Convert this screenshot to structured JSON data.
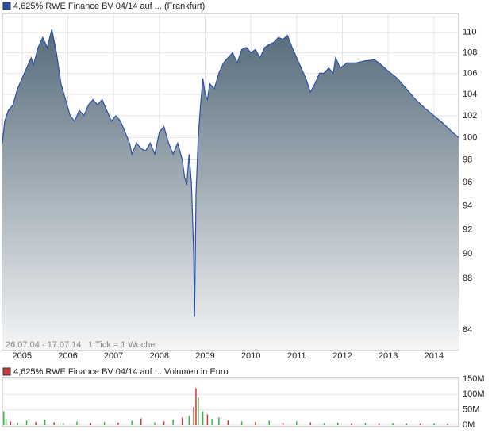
{
  "chart_data": [
    {
      "type": "area",
      "legend_text": "4,625% RWE Finance BV 04/14 auf ... (Frankfurt)",
      "date_range": "26.07.04 - 17.07.14",
      "tick_note": "1 Tick = 1 Woche",
      "log_scale": true,
      "grid": true,
      "color": "#2a4fa6",
      "fill_top": "#566b7b",
      "fill_bottom": "#f4f5f6",
      "xlim": [
        2004.57,
        2014.54
      ],
      "ylim": [
        82.5,
        111.9
      ],
      "xticks": [
        2005,
        2006,
        2007,
        2008,
        2009,
        2010,
        2011,
        2012,
        2013,
        2014
      ],
      "yticks": [
        84,
        88,
        90,
        92,
        94,
        96,
        98,
        100,
        102,
        104,
        106,
        108,
        110
      ],
      "x": [
        2004.57,
        2004.62,
        2004.7,
        2004.8,
        2004.9,
        2005.0,
        2005.1,
        2005.2,
        2005.25,
        2005.35,
        2005.45,
        2005.55,
        2005.65,
        2005.75,
        2005.85,
        2005.95,
        2006.05,
        2006.15,
        2006.25,
        2006.35,
        2006.45,
        2006.55,
        2006.65,
        2006.75,
        2006.85,
        2006.95,
        2007.05,
        2007.15,
        2007.25,
        2007.35,
        2007.4,
        2007.5,
        2007.6,
        2007.7,
        2007.8,
        2007.9,
        2008.0,
        2008.1,
        2008.2,
        2008.3,
        2008.4,
        2008.5,
        2008.55,
        2008.6,
        2008.65,
        2008.7,
        2008.75,
        2008.77,
        2008.8,
        2008.85,
        2008.9,
        2008.95,
        2009.0,
        2009.05,
        2009.1,
        2009.2,
        2009.3,
        2009.4,
        2009.5,
        2009.6,
        2009.7,
        2009.8,
        2009.9,
        2010.0,
        2010.1,
        2010.2,
        2010.3,
        2010.4,
        2010.5,
        2010.6,
        2010.7,
        2010.8,
        2010.9,
        2011.0,
        2011.1,
        2011.2,
        2011.3,
        2011.4,
        2011.5,
        2011.6,
        2011.7,
        2011.8,
        2011.85,
        2011.95,
        2012.1,
        2012.3,
        2012.5,
        2012.7,
        2012.8,
        2012.9,
        2013.0,
        2013.2,
        2013.4,
        2013.6,
        2013.8,
        2014.0,
        2014.2,
        2014.4,
        2014.54
      ],
      "values": [
        99.5,
        101.5,
        102.5,
        103,
        104.5,
        105.5,
        106.5,
        107.5,
        106.8,
        108.5,
        109.5,
        108.5,
        110.3,
        108,
        105,
        103.5,
        102,
        101.5,
        102.5,
        102,
        103,
        103.5,
        103,
        103.5,
        102.5,
        101.5,
        102,
        101.5,
        100.5,
        99.5,
        98.5,
        99.5,
        99,
        98.8,
        99.5,
        98.5,
        100.5,
        101,
        99.5,
        98.5,
        99.5,
        98,
        96.5,
        95.8,
        98.5,
        96,
        90,
        85,
        95,
        100,
        103,
        105.5,
        104,
        103.5,
        105,
        104.5,
        106,
        107,
        107.5,
        108,
        107,
        108.3,
        108.5,
        108,
        108.3,
        107.5,
        108.5,
        108.8,
        109,
        109.5,
        109.3,
        109.7,
        108.5,
        107.5,
        106.5,
        105.5,
        104.2,
        105,
        106,
        106,
        106.5,
        106,
        107.5,
        106.5,
        107,
        107,
        107.2,
        107.3,
        107,
        106.6,
        106.2,
        105.5,
        104.5,
        103.5,
        102.7,
        102,
        101.3,
        100.5,
        100
      ]
    },
    {
      "type": "volume",
      "legend_text": "4,625% RWE Finance BV 04/14 auf ... Volumen in Euro",
      "legend_color": "#c83c3c",
      "grid": true,
      "xlim": [
        2004.57,
        2014.54
      ],
      "ylim": [
        0,
        155000000
      ],
      "yticks": [
        {
          "value": 0,
          "label": "0M"
        },
        {
          "value": 50000000,
          "label": "50M"
        },
        {
          "value": 100000000,
          "label": "100M"
        },
        {
          "value": 150000000,
          "label": "150M"
        }
      ],
      "x": [
        2004.6,
        2004.65,
        2004.75,
        2004.9,
        2005.1,
        2005.3,
        2005.5,
        2005.7,
        2005.9,
        2006.2,
        2006.5,
        2006.8,
        2007.1,
        2007.4,
        2007.6,
        2007.9,
        2008.1,
        2008.3,
        2008.5,
        2008.65,
        2008.75,
        2008.8,
        2008.85,
        2008.95,
        2009.05,
        2009.15,
        2009.3,
        2009.5,
        2009.8,
        2010.1,
        2010.4,
        2010.7,
        2011.0,
        2011.3,
        2011.6,
        2011.9,
        2012.2,
        2012.5,
        2012.8,
        2013.1,
        2013.4,
        2013.7,
        2014.0,
        2014.3
      ],
      "values": [
        45000000,
        20000000,
        12000000,
        8000000,
        15000000,
        10000000,
        18000000,
        9000000,
        7000000,
        12000000,
        6000000,
        10000000,
        8000000,
        14000000,
        22000000,
        9000000,
        12000000,
        18000000,
        25000000,
        30000000,
        60000000,
        120000000,
        90000000,
        45000000,
        35000000,
        20000000,
        25000000,
        15000000,
        12000000,
        10000000,
        14000000,
        8000000,
        12000000,
        9000000,
        6000000,
        8000000,
        5000000,
        7000000,
        4000000,
        6000000,
        5000000,
        4000000,
        5000000,
        3000000
      ],
      "colors": [
        "#3cb44b",
        "#3cb44b",
        "#c83c3c",
        "#3cb44b",
        "#3cb44b",
        "#c83c3c",
        "#3cb44b",
        "#c83c3c",
        "#3cb44b",
        "#3cb44b",
        "#c83c3c",
        "#3cb44b",
        "#c83c3c",
        "#3cb44b",
        "#c83c3c",
        "#3cb44b",
        "#c83c3c",
        "#3cb44b",
        "#c83c3c",
        "#3cb44b",
        "#c83c3c",
        "#c83c3c",
        "#3cb44b",
        "#3cb44b",
        "#c83c3c",
        "#3cb44b",
        "#3cb44b",
        "#c83c3c",
        "#3cb44b",
        "#c83c3c",
        "#3cb44b",
        "#c83c3c",
        "#3cb44b",
        "#c83c3c",
        "#3cb44b",
        "#3cb44b",
        "#c83c3c",
        "#3cb44b",
        "#c83c3c",
        "#3cb44b",
        "#3cb44b",
        "#c83c3c",
        "#3cb44b",
        "#c83c3c"
      ]
    }
  ]
}
